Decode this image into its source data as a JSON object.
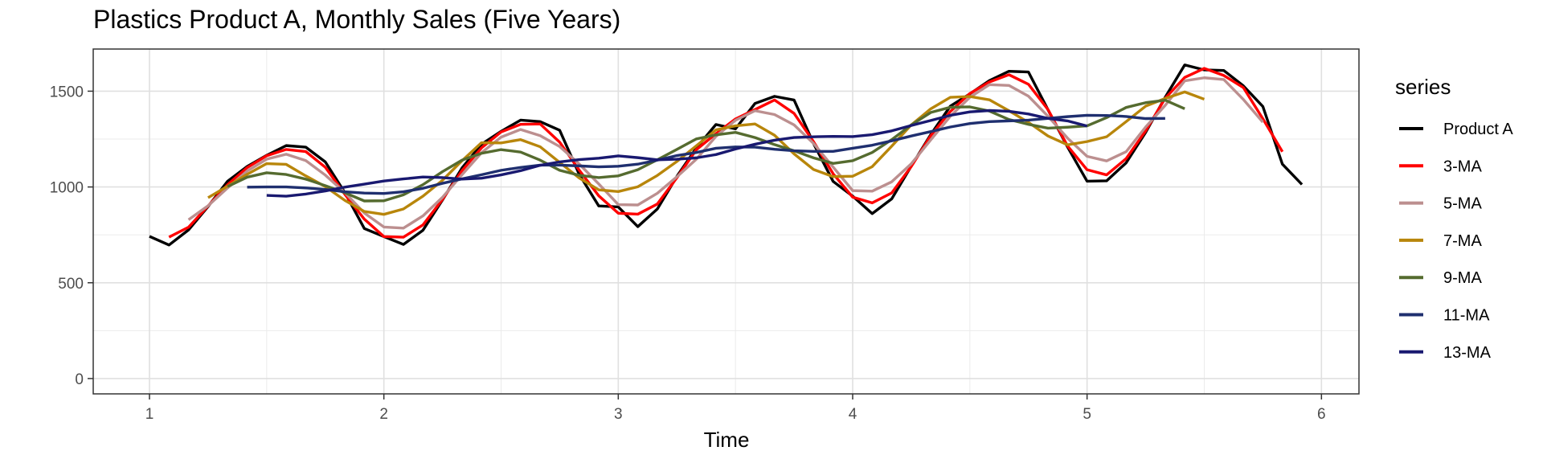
{
  "chart_data": {
    "type": "line",
    "title": "Plastics Product A, Monthly Sales (Five Years)",
    "xlabel": "Time",
    "ylabel": "",
    "xlim": [
      0.76,
      6.16
    ],
    "ylim": [
      -80,
      1720
    ],
    "x_ticks": [
      1,
      2,
      3,
      4,
      5,
      6
    ],
    "y_ticks": [
      0,
      500,
      1000,
      1500
    ],
    "grid": true,
    "legend_title": "series",
    "legend_position": "right",
    "series": [
      {
        "name": "Product A",
        "color": "#000000",
        "start_index": 0,
        "values": [
          742,
          697,
          776,
          898,
          1030,
          1107,
          1165,
          1216,
          1208,
          1131,
          971,
          783,
          741,
          700,
          774,
          932,
          1099,
          1223,
          1290,
          1349,
          1341,
          1296,
          1066,
          901,
          896,
          793,
          885,
          1055,
          1204,
          1326,
          1303,
          1436,
          1473,
          1454,
          1226,
          1029,
          952,
          861,
          938,
          1109,
          1274,
          1422,
          1486,
          1555,
          1604,
          1600,
          1403,
          1209,
          1030,
          1032,
          1126,
          1285,
          1468,
          1637,
          1611,
          1608,
          1528,
          1420,
          1119,
          1013
        ]
      },
      {
        "name": "3-MA",
        "color": "#ff0000",
        "start_index": 1,
        "values": [
          738,
          790,
          901,
          1012,
          1101,
          1163,
          1196,
          1185,
          1103,
          962,
          832,
          741,
          738,
          802,
          935,
          1085,
          1204,
          1287,
          1327,
          1329,
          1234,
          1088,
          954,
          863,
          858,
          911,
          1048,
          1195,
          1278,
          1355,
          1404,
          1454,
          1384,
          1236,
          1069,
          947,
          917,
          969,
          1107,
          1268,
          1394,
          1488,
          1548,
          1586,
          1536,
          1404,
          1214,
          1090,
          1063,
          1148,
          1293,
          1463,
          1572,
          1619,
          1582,
          1519,
          1356,
          1184
        ]
      },
      {
        "name": "5-MA",
        "color": "#bc8f8f",
        "start_index": 2,
        "values": [
          829,
          902,
          995,
          1083,
          1145,
          1171,
          1138,
          1062,
          971,
          864,
          791,
          785,
          849,
          946,
          1064,
          1179,
          1260,
          1300,
          1268,
          1211,
          1120,
          1016,
          908,
          906,
          967,
          1053,
          1145,
          1264,
          1348,
          1398,
          1378,
          1324,
          1227,
          1104,
          981,
          978,
          1027,
          1121,
          1246,
          1369,
          1468,
          1534,
          1530,
          1474,
          1369,
          1255,
          1160,
          1136,
          1184,
          1313,
          1426,
          1554,
          1570,
          1561,
          1457,
          1338
        ]
      },
      {
        "name": "7-MA",
        "color": "#b8860b",
        "start_index": 3,
        "values": [
          944,
          1004,
          1066,
          1122,
          1118,
          1058,
          1002,
          930,
          872,
          857,
          885,
          952,
          1035,
          1137,
          1231,
          1230,
          1247,
          1210,
          1128,
          1047,
          985,
          976,
          1001,
          1060,
          1133,
          1215,
          1298,
          1319,
          1329,
          1270,
          1173,
          1091,
          1054,
          1056,
          1106,
          1213,
          1324,
          1408,
          1468,
          1472,
          1455,
          1398,
          1337,
          1266,
          1220,
          1237,
          1262,
          1341,
          1422,
          1462,
          1496,
          1458
        ]
      },
      {
        "name": "9-MA",
        "color": "#556b2f",
        "start_index": 4,
        "values": [
          1002,
          1051,
          1074,
          1065,
          1041,
          1007,
          970,
          927,
          928,
          959,
          1012,
          1080,
          1140,
          1176,
          1195,
          1182,
          1140,
          1087,
          1061,
          1049,
          1058,
          1090,
          1142,
          1196,
          1251,
          1272,
          1285,
          1258,
          1221,
          1189,
          1152,
          1123,
          1137,
          1180,
          1247,
          1324,
          1389,
          1416,
          1418,
          1396,
          1352,
          1327,
          1307,
          1312,
          1319,
          1362,
          1415,
          1440,
          1453,
          1408
        ]
      },
      {
        "name": "11-MA",
        "color": "#1f2f6f",
        "start_index": 5,
        "values": [
          999,
          1000,
          1000,
          995,
          987,
          975,
          968,
          966,
          975,
          993,
          1019,
          1042,
          1064,
          1087,
          1102,
          1114,
          1114,
          1110,
          1105,
          1108,
          1119,
          1140,
          1164,
          1180,
          1202,
          1209,
          1208,
          1197,
          1189,
          1186,
          1186,
          1202,
          1218,
          1241,
          1266,
          1289,
          1313,
          1331,
          1341,
          1345,
          1349,
          1358,
          1367,
          1374,
          1373,
          1368,
          1357,
          1358
        ]
      },
      {
        "name": "13-MA",
        "color": "#191970",
        "start_index": 6,
        "values": [
          956,
          952,
          963,
          979,
          999,
          1015,
          1031,
          1042,
          1052,
          1049,
          1041,
          1046,
          1063,
          1085,
          1113,
          1131,
          1143,
          1150,
          1162,
          1153,
          1142,
          1145,
          1152,
          1169,
          1198,
          1223,
          1244,
          1258,
          1262,
          1264,
          1263,
          1273,
          1293,
          1321,
          1347,
          1374,
          1392,
          1399,
          1395,
          1381,
          1358,
          1345,
          1318
        ]
      }
    ]
  }
}
